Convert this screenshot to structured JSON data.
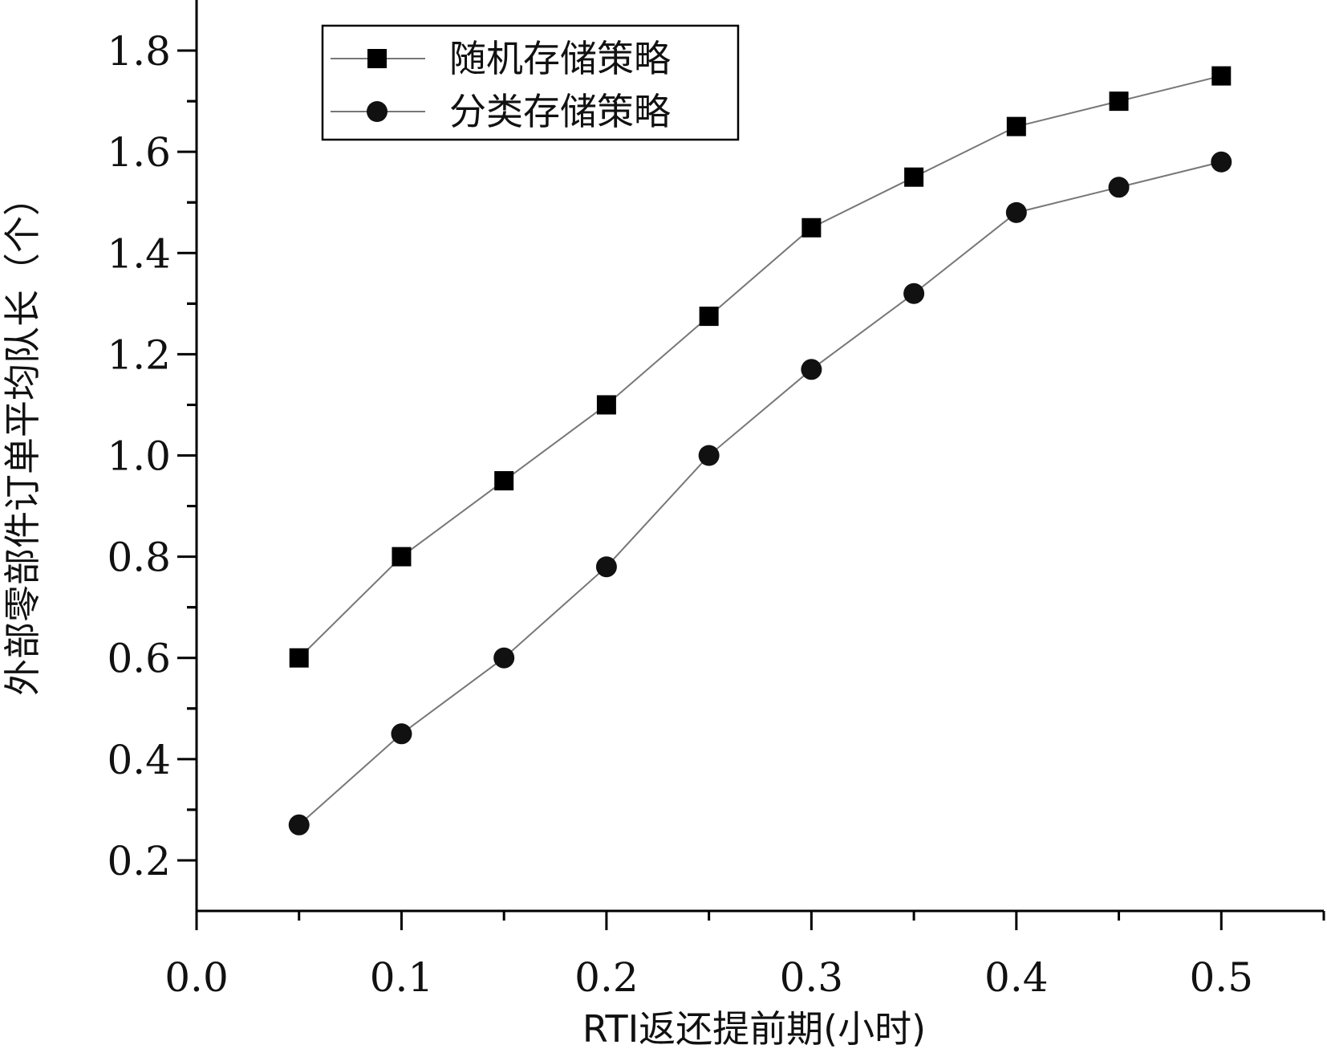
{
  "chart_data": {
    "type": "line",
    "title": "",
    "xlabel": "RTI返还提前期(小时)",
    "ylabel": "外部零部件订单平均队长（个）",
    "xlim": [
      0.0,
      0.55
    ],
    "ylim": [
      0.1,
      1.9
    ],
    "x_ticks": [
      0.0,
      0.1,
      0.2,
      0.3,
      0.4,
      0.5
    ],
    "x_tick_labels": [
      "0.0",
      "0.1",
      "0.2",
      "0.3",
      "0.4",
      "0.5"
    ],
    "y_ticks": [
      0.2,
      0.4,
      0.6,
      0.8,
      1.0,
      1.2,
      1.4,
      1.6,
      1.8
    ],
    "y_tick_labels": [
      "0.2",
      "0.4",
      "0.6",
      "0.8",
      "1.0",
      "1.2",
      "1.4",
      "1.6",
      "1.8"
    ],
    "grid": false,
    "legend_position": "top-left",
    "x": [
      0.05,
      0.1,
      0.15,
      0.2,
      0.25,
      0.3,
      0.35,
      0.4,
      0.45,
      0.5
    ],
    "series": [
      {
        "name": "随机存储策略",
        "marker": "square",
        "values": [
          0.6,
          0.8,
          0.95,
          1.1,
          1.275,
          1.45,
          1.55,
          1.65,
          1.7,
          1.75
        ]
      },
      {
        "name": "分类存储策略",
        "marker": "circle",
        "values": [
          0.27,
          0.45,
          0.6,
          0.78,
          1.0,
          1.17,
          1.32,
          1.48,
          1.53,
          1.58
        ]
      }
    ],
    "colors": {
      "line": "#777777",
      "marker": "#000000",
      "axis": "#000000"
    }
  }
}
